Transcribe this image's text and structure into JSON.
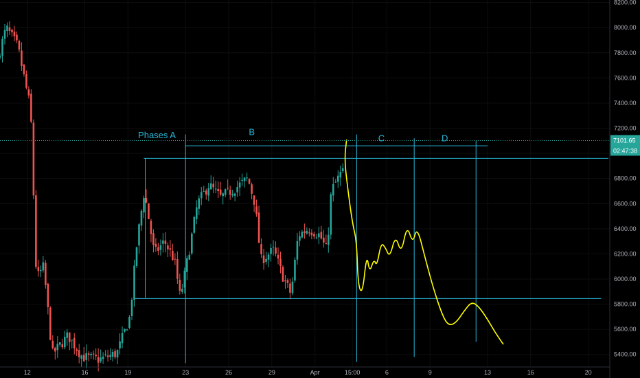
{
  "chart_data": {
    "type": "candlestick",
    "instrument_note": "",
    "ylim": [
      5300,
      8220
    ],
    "y_ticks": [
      5400,
      5600,
      5800,
      6000,
      6200,
      6400,
      6600,
      6800,
      7000,
      7200,
      7400,
      7600,
      7800,
      8000,
      8200
    ],
    "y_tick_labels": [
      "5400.00",
      "5600.00",
      "5800.00",
      "6000.00",
      "6200.00",
      "6400.00",
      "6600.00",
      "6800.00",
      "7000.00",
      "7200.00",
      "7400.00",
      "7600.00",
      "7800.00",
      "8000.00",
      "8200.00"
    ],
    "x_labels": [
      {
        "label": "12",
        "day": 12
      },
      {
        "label": "16",
        "day": 16
      },
      {
        "label": "19",
        "day": 19
      },
      {
        "label": "23",
        "day": 23
      },
      {
        "label": "26",
        "day": 26
      },
      {
        "label": "29",
        "day": 29
      },
      {
        "label": "Apr",
        "day": 32
      },
      {
        "label": "15:00",
        "day": 34.6
      },
      {
        "label": "6",
        "day": 37
      },
      {
        "label": "9",
        "day": 40
      },
      {
        "label": "13",
        "day": 44
      },
      {
        "label": "16",
        "day": 47
      },
      {
        "label": "20",
        "day": 51
      }
    ],
    "x_range_days": [
      10.1,
      52.5
    ],
    "price_line": {
      "value": 7101.65,
      "label": "7101.65",
      "countdown": "02:47:38",
      "color": "#26a69a"
    },
    "colors": {
      "up": "#26a69a",
      "down": "#ef5350",
      "drawing": "#29b6d8",
      "projection": "#ffff00",
      "grid": "#0e0e0e",
      "axis_text": "#b2b5be"
    },
    "anchors": [
      {
        "day": 10.1,
        "price": 7750
      },
      {
        "day": 10.7,
        "price": 8000
      },
      {
        "day": 11.5,
        "price": 7850
      },
      {
        "day": 12.4,
        "price": 7350
      },
      {
        "day": 12.8,
        "price": 6000
      },
      {
        "day": 13.3,
        "price": 6100
      },
      {
        "day": 13.9,
        "price": 5400
      },
      {
        "day": 15.0,
        "price": 5550
      },
      {
        "day": 16.0,
        "price": 5380
      },
      {
        "day": 17.2,
        "price": 5360
      },
      {
        "day": 18.4,
        "price": 5410
      },
      {
        "day": 19.3,
        "price": 5700
      },
      {
        "day": 19.8,
        "price": 6300
      },
      {
        "day": 20.3,
        "price": 6700
      },
      {
        "day": 21.0,
        "price": 6200
      },
      {
        "day": 21.7,
        "price": 6300
      },
      {
        "day": 22.4,
        "price": 6150
      },
      {
        "day": 22.8,
        "price": 5850
      },
      {
        "day": 23.3,
        "price": 6150
      },
      {
        "day": 24.0,
        "price": 6600
      },
      {
        "day": 24.8,
        "price": 6750
      },
      {
        "day": 25.6,
        "price": 6650
      },
      {
        "day": 26.6,
        "price": 6720
      },
      {
        "day": 27.5,
        "price": 6800
      },
      {
        "day": 28.0,
        "price": 6600
      },
      {
        "day": 28.4,
        "price": 6150
      },
      {
        "day": 29.3,
        "price": 6230
      },
      {
        "day": 30.0,
        "price": 6000
      },
      {
        "day": 30.5,
        "price": 5880
      },
      {
        "day": 31.0,
        "price": 6350
      },
      {
        "day": 31.7,
        "price": 6400
      },
      {
        "day": 32.5,
        "price": 6350
      },
      {
        "day": 33.0,
        "price": 6220
      },
      {
        "day": 33.3,
        "price": 6700
      },
      {
        "day": 34.0,
        "price": 6850
      }
    ],
    "drawings": {
      "labels": [
        {
          "text": "Phases A",
          "day": 19.7,
          "price": 7120
        },
        {
          "text": "B",
          "day": 27.4,
          "price": 7145
        },
        {
          "text": "C",
          "day": 36.4,
          "price": 7095
        },
        {
          "text": "D",
          "day": 40.8,
          "price": 7095
        }
      ],
      "h_lines": [
        {
          "price": 7060,
          "from_day": 23.0,
          "to_day": 44.0
        },
        {
          "price": 6960,
          "from_day": 20.1,
          "to_day": 52.4
        },
        {
          "price": 5845,
          "from_day": 19.5,
          "to_day": 51.9
        }
      ],
      "v_lines": [
        {
          "day": 23.0,
          "from_price": 7150,
          "to_price": 5330
        },
        {
          "day": 20.2,
          "from_price": 6960,
          "to_price": 5850
        },
        {
          "day": 34.9,
          "from_price": 7150,
          "to_price": 5340
        },
        {
          "day": 38.9,
          "from_price": 7120,
          "to_price": 5380
        },
        {
          "day": 43.2,
          "from_price": 7100,
          "to_price": 5500
        }
      ]
    },
    "projection": [
      {
        "day": 34.2,
        "price": 7110
      },
      {
        "day": 34.05,
        "price": 6950
      },
      {
        "day": 34.3,
        "price": 6700
      },
      {
        "day": 34.6,
        "price": 6450
      },
      {
        "day": 34.9,
        "price": 6300
      },
      {
        "day": 35.0,
        "price": 5950
      },
      {
        "day": 35.3,
        "price": 5880
      },
      {
        "day": 35.6,
        "price": 6200
      },
      {
        "day": 35.8,
        "price": 6050
      },
      {
        "day": 36.1,
        "price": 6160
      },
      {
        "day": 36.3,
        "price": 6100
      },
      {
        "day": 36.6,
        "price": 6290
      },
      {
        "day": 36.9,
        "price": 6250
      },
      {
        "day": 37.2,
        "price": 6170
      },
      {
        "day": 37.6,
        "price": 6350
      },
      {
        "day": 38.0,
        "price": 6200
      },
      {
        "day": 38.4,
        "price": 6430
      },
      {
        "day": 38.8,
        "price": 6280
      },
      {
        "day": 39.1,
        "price": 6420
      },
      {
        "day": 39.7,
        "price": 6150
      },
      {
        "day": 40.3,
        "price": 5900
      },
      {
        "day": 40.9,
        "price": 5700
      },
      {
        "day": 41.3,
        "price": 5630
      },
      {
        "day": 41.8,
        "price": 5650
      },
      {
        "day": 42.4,
        "price": 5750
      },
      {
        "day": 42.9,
        "price": 5820
      },
      {
        "day": 43.4,
        "price": 5780
      },
      {
        "day": 44.0,
        "price": 5680
      },
      {
        "day": 44.5,
        "price": 5580
      },
      {
        "day": 45.1,
        "price": 5480
      }
    ]
  }
}
